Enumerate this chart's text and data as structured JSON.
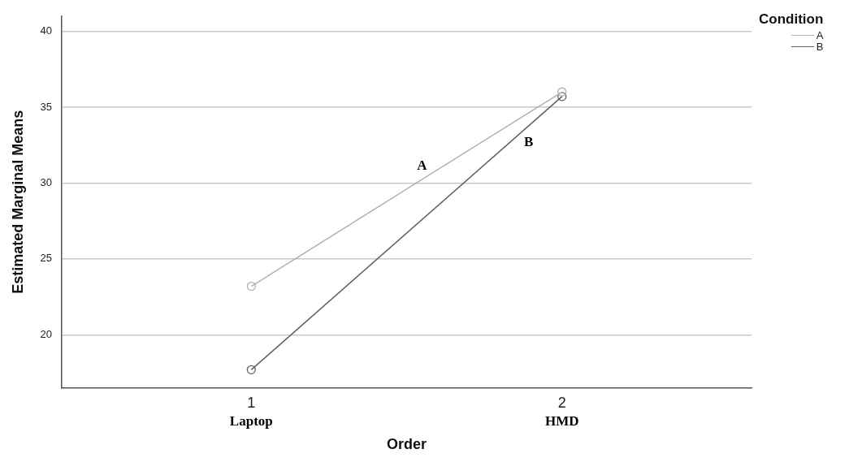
{
  "chart_data": {
    "type": "line",
    "xlabel": "Order",
    "ylabel": "Estimated Marginal Means",
    "legend_title": "Condition",
    "x": [
      1,
      2
    ],
    "xlim": [
      0.39,
      2.61
    ],
    "xticks": [
      {
        "value": 1,
        "label": "1"
      },
      {
        "value": 2,
        "label": "2"
      }
    ],
    "ylim": [
      16.5,
      41
    ],
    "yticks": [
      20,
      25,
      30,
      35,
      40
    ],
    "series": [
      {
        "name": "A",
        "color": "#b0b0b0",
        "values": [
          23.2,
          36.0
        ]
      },
      {
        "name": "B",
        "color": "#606060",
        "values": [
          17.7,
          35.7
        ]
      }
    ],
    "annotations": [
      "Laptop",
      "HMD",
      "A",
      "B"
    ],
    "grid": "y",
    "legend": "top right",
    "marker": "circle",
    "line_style": "solid"
  }
}
